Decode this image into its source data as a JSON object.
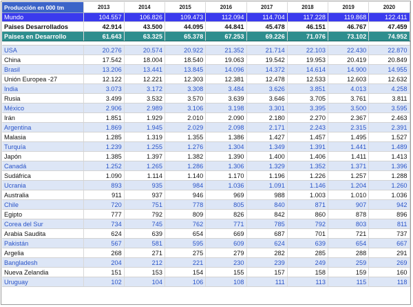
{
  "table": {
    "label": "Producción en 000 tm",
    "years": [
      "2013",
      "2014",
      "2015",
      "2016",
      "2017",
      "2018",
      "2019",
      "2020"
    ],
    "summary": [
      {
        "name": "Mundo",
        "values": [
          "104.557",
          "106.826",
          "109.473",
          "112.094",
          "114.704",
          "117.228",
          "119.868",
          "122.411"
        ]
      },
      {
        "name": "Paises Desarrollados",
        "values": [
          "42.914",
          "43.500",
          "44.095",
          "44.841",
          "45.478",
          "46.151",
          "46.767",
          "47.459"
        ]
      },
      {
        "name": "Paises en Desarrollo",
        "values": [
          "61.643",
          "63.325",
          "65.378",
          "67.253",
          "69.226",
          "71.076",
          "73.102",
          "74.952"
        ]
      }
    ],
    "rows": [
      {
        "name": "USA",
        "values": [
          "20.276",
          "20.574",
          "20.922",
          "21.352",
          "21.714",
          "22.103",
          "22.430",
          "22.870"
        ]
      },
      {
        "name": "China",
        "values": [
          "17.542",
          "18.004",
          "18.540",
          "19.063",
          "19.542",
          "19.953",
          "20.419",
          "20.849"
        ]
      },
      {
        "name": "Brasil",
        "values": [
          "13.206",
          "13.441",
          "13.845",
          "14.096",
          "14.372",
          "14.614",
          "14.900",
          "14.955"
        ]
      },
      {
        "name": "Unión Europea -27",
        "values": [
          "12.122",
          "12.221",
          "12.303",
          "12.381",
          "12.478",
          "12.533",
          "12.603",
          "12.632"
        ]
      },
      {
        "name": "India",
        "values": [
          "3.073",
          "3.172",
          "3.308",
          "3.484",
          "3.626",
          "3.851",
          "4.013",
          "4.258"
        ]
      },
      {
        "name": "Rusia",
        "values": [
          "3.499",
          "3.532",
          "3.570",
          "3.639",
          "3.646",
          "3.705",
          "3.761",
          "3.811"
        ]
      },
      {
        "name": "México",
        "values": [
          "2.906",
          "2.989",
          "3.106",
          "3.198",
          "3.301",
          "3.395",
          "3.500",
          "3.595"
        ]
      },
      {
        "name": "Irán",
        "values": [
          "1.851",
          "1.929",
          "2.010",
          "2.090",
          "2.180",
          "2.270",
          "2.367",
          "2.463"
        ]
      },
      {
        "name": "Argentina",
        "values": [
          "1.869",
          "1.945",
          "2.029",
          "2.098",
          "2.171",
          "2.243",
          "2.315",
          "2.391"
        ]
      },
      {
        "name": "Malasia",
        "values": [
          "1.285",
          "1.319",
          "1.355",
          "1.386",
          "1.427",
          "1.457",
          "1.495",
          "1.527"
        ]
      },
      {
        "name": "Turquía",
        "values": [
          "1.239",
          "1.255",
          "1.276",
          "1.304",
          "1.349",
          "1.391",
          "1.441",
          "1.489"
        ]
      },
      {
        "name": "Japón",
        "values": [
          "1.385",
          "1.397",
          "1.382",
          "1.390",
          "1.400",
          "1.406",
          "1.411",
          "1.413"
        ]
      },
      {
        "name": "Canadá",
        "values": [
          "1.252",
          "1.265",
          "1.286",
          "1.306",
          "1.329",
          "1.352",
          "1.371",
          "1.396"
        ]
      },
      {
        "name": "Sudáfrica",
        "values": [
          "1.090",
          "1.114",
          "1.140",
          "1.170",
          "1.196",
          "1.226",
          "1.257",
          "1.288"
        ]
      },
      {
        "name": "Ucrania",
        "values": [
          "893",
          "935",
          "984",
          "1.036",
          "1.091",
          "1.146",
          "1.204",
          "1.260"
        ]
      },
      {
        "name": "Australia",
        "values": [
          "911",
          "937",
          "946",
          "969",
          "988",
          "1.003",
          "1.010",
          "1.036"
        ]
      },
      {
        "name": "Chile",
        "values": [
          "720",
          "751",
          "778",
          "805",
          "840",
          "871",
          "907",
          "942"
        ]
      },
      {
        "name": "Egipto",
        "values": [
          "777",
          "792",
          "809",
          "826",
          "842",
          "860",
          "878",
          "896"
        ]
      },
      {
        "name": "Corea del Sur",
        "values": [
          "734",
          "745",
          "762",
          "771",
          "785",
          "792",
          "803",
          "811"
        ]
      },
      {
        "name": "Arabia Saudita",
        "values": [
          "624",
          "639",
          "654",
          "669",
          "687",
          "701",
          "721",
          "737"
        ]
      },
      {
        "name": "Pakistán",
        "values": [
          "567",
          "581",
          "595",
          "609",
          "624",
          "639",
          "654",
          "667"
        ]
      },
      {
        "name": "Argelia",
        "values": [
          "268",
          "271",
          "275",
          "279",
          "282",
          "285",
          "288",
          "291"
        ]
      },
      {
        "name": "Bangladesh",
        "values": [
          "204",
          "212",
          "221",
          "230",
          "239",
          "249",
          "259",
          "269"
        ]
      },
      {
        "name": "Nueva Zelandia",
        "values": [
          "151",
          "153",
          "154",
          "155",
          "157",
          "158",
          "159",
          "160"
        ]
      },
      {
        "name": "Uruguay",
        "values": [
          "102",
          "104",
          "106",
          "108",
          "111",
          "113",
          "115",
          "118"
        ]
      }
    ]
  }
}
